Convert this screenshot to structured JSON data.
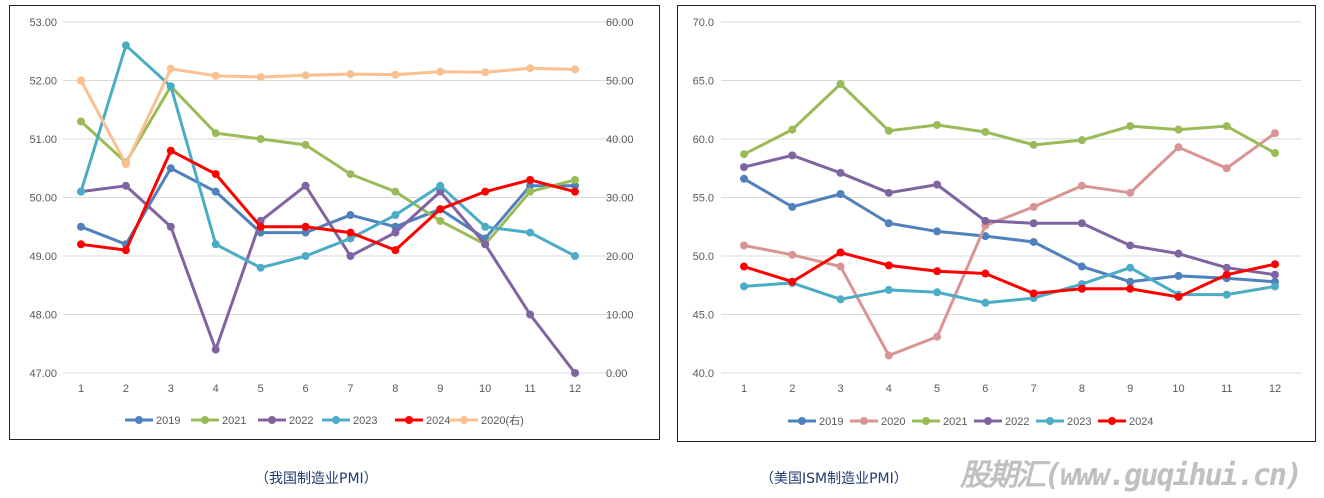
{
  "charts_captions": {
    "left": "（我国制造业PMI）",
    "right": "（美国ISM制造业PMI）"
  },
  "watermark": "股期汇(www.guqihui.cn)",
  "chart_data": [
    {
      "type": "line",
      "categories": [
        "1",
        "2",
        "3",
        "4",
        "5",
        "6",
        "7",
        "8",
        "9",
        "10",
        "11",
        "12"
      ],
      "ylim": [
        47,
        53
      ],
      "yticks": [
        "47.00",
        "48.00",
        "49.00",
        "50.00",
        "51.00",
        "52.00",
        "53.00"
      ],
      "y2lim": [
        0,
        60
      ],
      "y2ticks": [
        "0.00",
        "10.00",
        "20.00",
        "30.00",
        "40.00",
        "50.00",
        "60.00"
      ],
      "grid": true,
      "legend": "bottom",
      "series": [
        {
          "name": "2019",
          "color": "#4f81bd",
          "axis": "left",
          "values": [
            49.5,
            49.2,
            50.5,
            50.1,
            49.4,
            49.4,
            49.7,
            49.5,
            49.8,
            49.3,
            50.2,
            50.2
          ]
        },
        {
          "name": "2021",
          "color": "#9bbb59",
          "axis": "left",
          "values": [
            51.3,
            50.6,
            51.9,
            51.1,
            51.0,
            50.9,
            50.4,
            50.1,
            49.6,
            49.2,
            50.1,
            50.3
          ]
        },
        {
          "name": "2022",
          "color": "#8064a2",
          "axis": "left",
          "values": [
            50.1,
            50.2,
            49.5,
            47.4,
            49.6,
            50.2,
            49.0,
            49.4,
            50.1,
            49.2,
            48.0,
            47.0
          ]
        },
        {
          "name": "2023",
          "color": "#4bacc6",
          "axis": "left",
          "values": [
            50.1,
            52.6,
            51.9,
            49.2,
            48.8,
            49.0,
            49.3,
            49.7,
            50.2,
            49.5,
            49.4,
            49.0
          ]
        },
        {
          "name": "2024",
          "color": "#ff0000",
          "axis": "left",
          "values": [
            49.2,
            49.1,
            50.8,
            50.4,
            49.5,
            49.5,
            49.4,
            49.1,
            49.8,
            50.1,
            50.3,
            50.1
          ]
        },
        {
          "name": "2020(右)",
          "color": "#fac090",
          "axis": "right",
          "values": [
            50.0,
            35.7,
            52.0,
            50.8,
            50.6,
            50.9,
            51.1,
            51.0,
            51.5,
            51.4,
            52.1,
            51.9
          ]
        }
      ]
    },
    {
      "type": "line",
      "categories": [
        "1",
        "2",
        "3",
        "4",
        "5",
        "6",
        "7",
        "8",
        "9",
        "10",
        "11",
        "12"
      ],
      "ylim": [
        40,
        70
      ],
      "yticks": [
        "40.0",
        "45.0",
        "50.0",
        "55.0",
        "60.0",
        "65.0",
        "70.0"
      ],
      "grid": true,
      "legend": "bottom",
      "series": [
        {
          "name": "2019",
          "color": "#4f81bd",
          "values": [
            56.6,
            54.2,
            55.3,
            52.8,
            52.1,
            51.7,
            51.2,
            49.1,
            47.8,
            48.3,
            48.1,
            47.8
          ]
        },
        {
          "name": "2020",
          "color": "#d99594",
          "values": [
            50.9,
            50.1,
            49.1,
            41.5,
            43.1,
            52.6,
            54.2,
            56.0,
            55.4,
            59.3,
            57.5,
            60.5
          ]
        },
        {
          "name": "2021",
          "color": "#9bbb59",
          "values": [
            58.7,
            60.8,
            64.7,
            60.7,
            61.2,
            60.6,
            59.5,
            59.9,
            61.1,
            60.8,
            61.1,
            58.8
          ]
        },
        {
          "name": "2022",
          "color": "#8064a2",
          "values": [
            57.6,
            58.6,
            57.1,
            55.4,
            56.1,
            53.0,
            52.8,
            52.8,
            50.9,
            50.2,
            49.0,
            48.4
          ]
        },
        {
          "name": "2023",
          "color": "#4bacc6",
          "values": [
            47.4,
            47.7,
            46.3,
            47.1,
            46.9,
            46.0,
            46.4,
            47.6,
            49.0,
            46.7,
            46.7,
            47.4
          ]
        },
        {
          "name": "2024",
          "color": "#ff0000",
          "values": [
            49.1,
            47.8,
            50.3,
            49.2,
            48.7,
            48.5,
            46.8,
            47.2,
            47.2,
            46.5,
            48.4,
            49.3
          ]
        }
      ]
    }
  ]
}
